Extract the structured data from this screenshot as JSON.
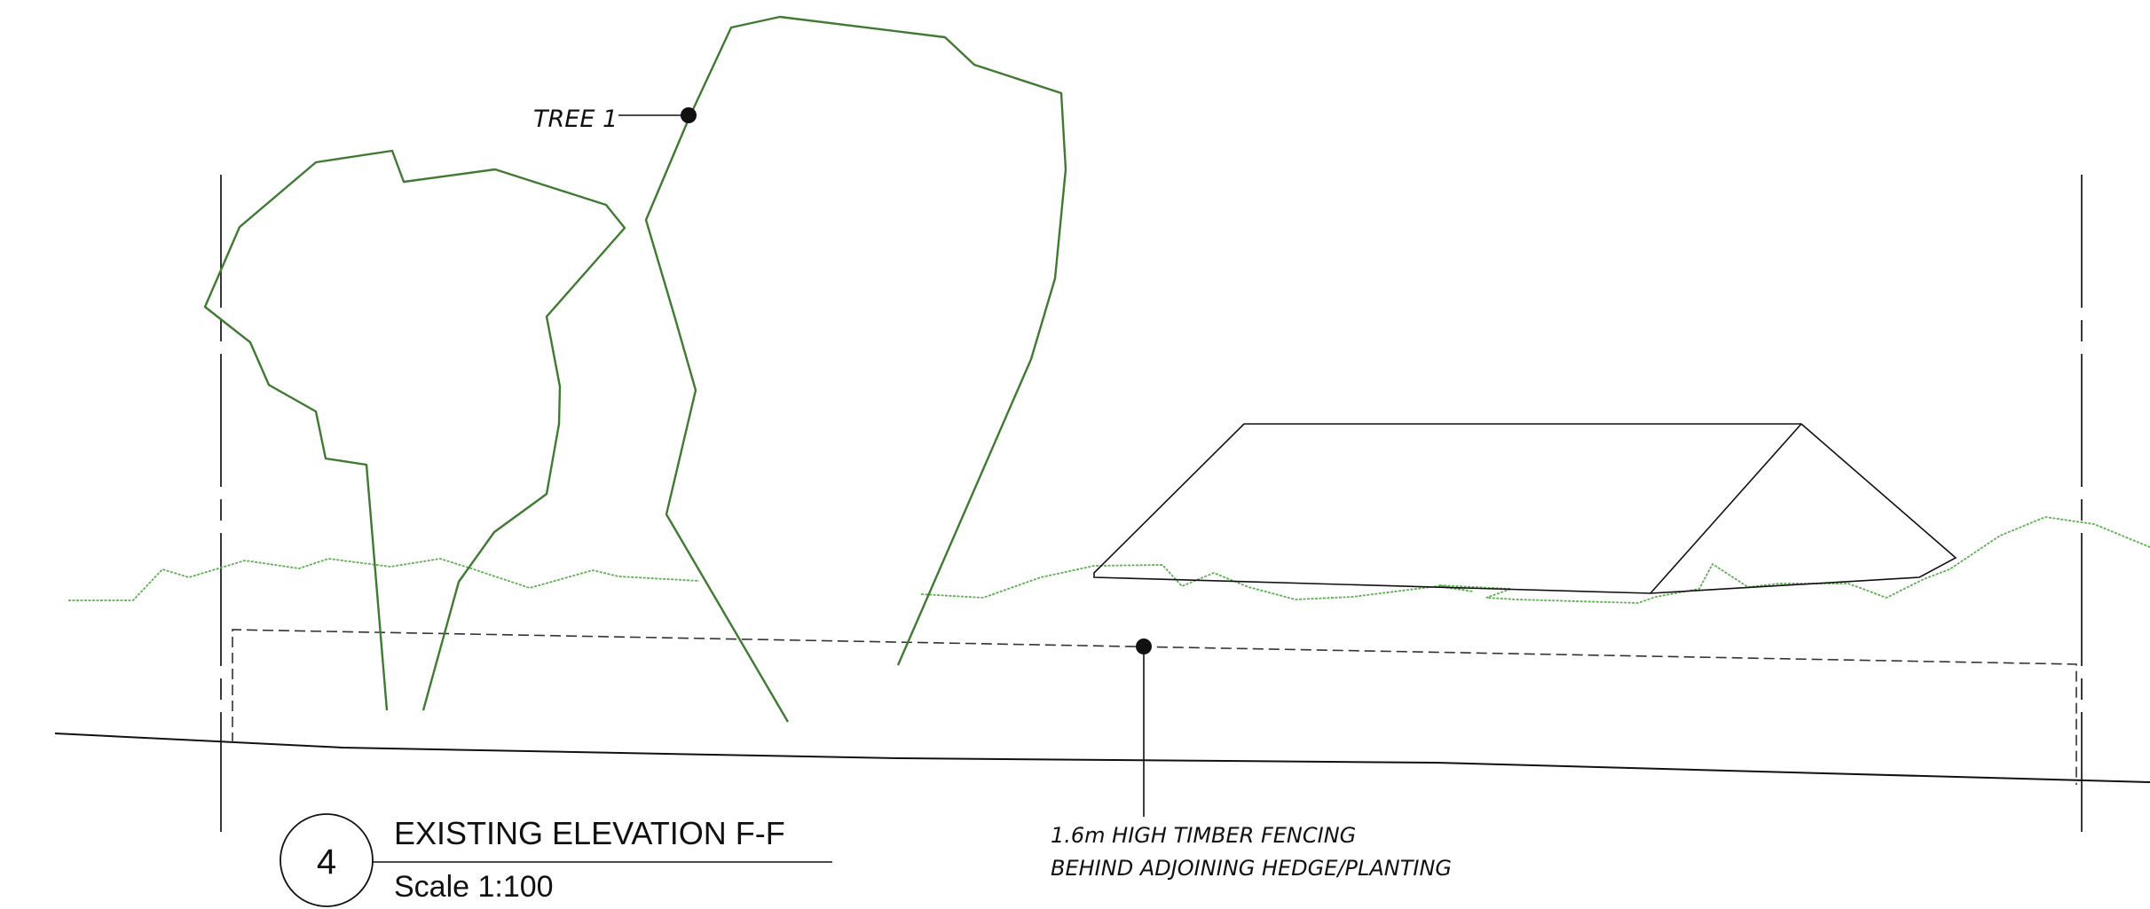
{
  "drawing": {
    "number": "4",
    "title": "EXISTING ELEVATION F-F",
    "scale": "Scale 1:100"
  },
  "labels": {
    "tree_1": "TREE 1",
    "fencing_line_1": "1.6m HIGH TIMBER FENCING",
    "fencing_line_2": "BEHIND ADJOINING HEDGE/PLANTING"
  },
  "colors": {
    "tree_outline": "#3f7a32",
    "hedge_outline": "#5fb053",
    "linework": "#111111"
  }
}
